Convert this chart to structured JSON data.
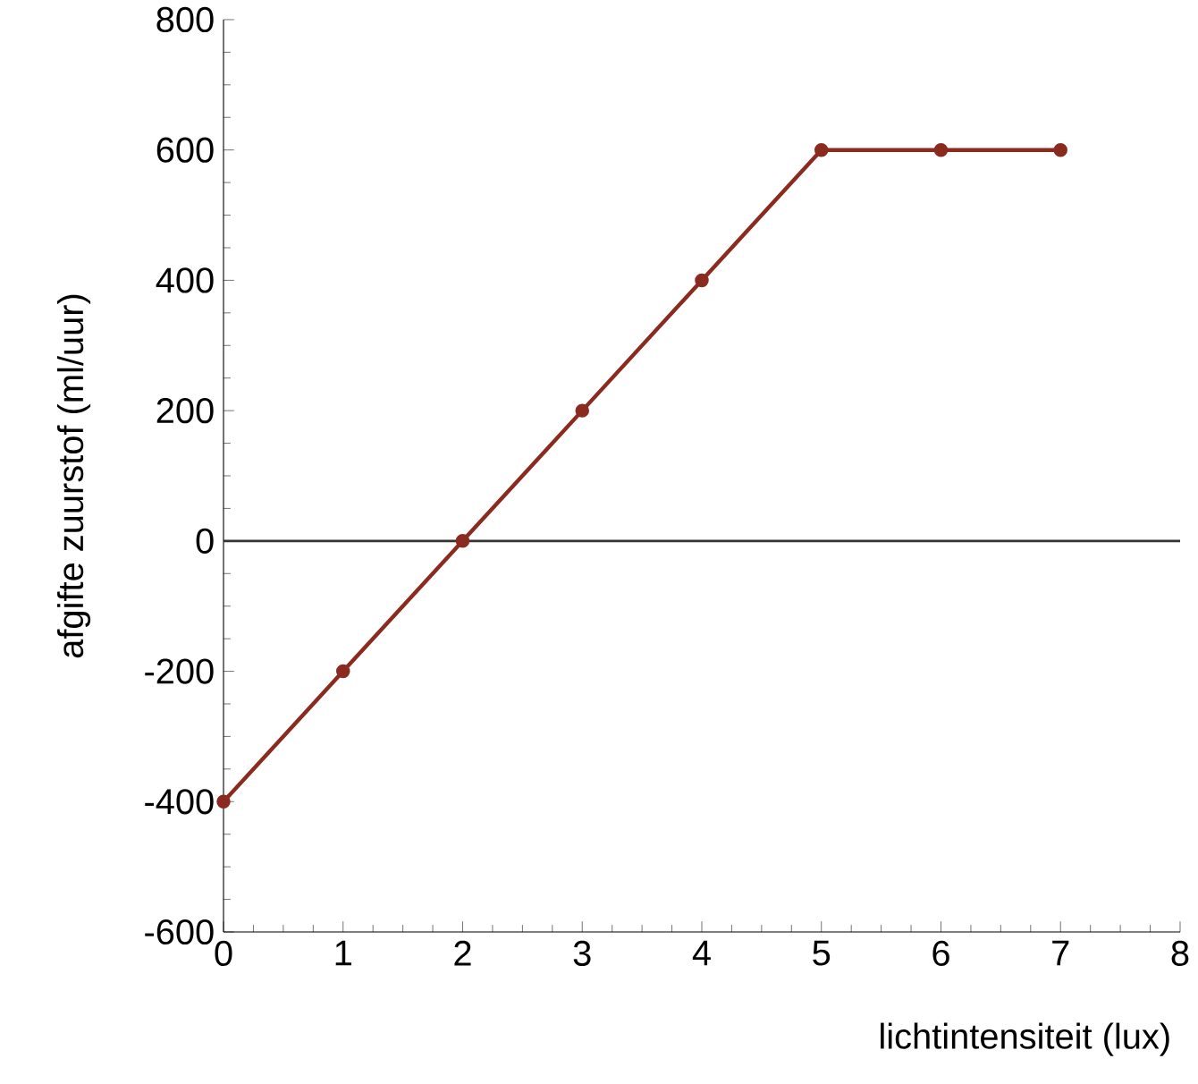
{
  "chart_data": {
    "type": "line",
    "xlabel": "lichtintensiteit (lux)",
    "ylabel": "afgifte zuurstof (ml/uur)",
    "x": [
      0,
      1,
      2,
      3,
      4,
      5,
      6,
      7
    ],
    "series": [
      {
        "color": "#8b2a1e",
        "values": [
          -400,
          -200,
          0,
          200,
          400,
          600,
          600,
          600
        ]
      }
    ],
    "xlim": [
      0,
      8
    ],
    "ylim": [
      -600,
      800
    ],
    "xticks": [
      0,
      1,
      2,
      3,
      4,
      5,
      6,
      7,
      8
    ],
    "yticks": [
      -600,
      -400,
      -200,
      0,
      200,
      400,
      600,
      800
    ],
    "ref_lines": [
      {
        "axis": "y",
        "value": 0,
        "color": "#333333"
      }
    ],
    "marker": "circle",
    "grid": false
  }
}
